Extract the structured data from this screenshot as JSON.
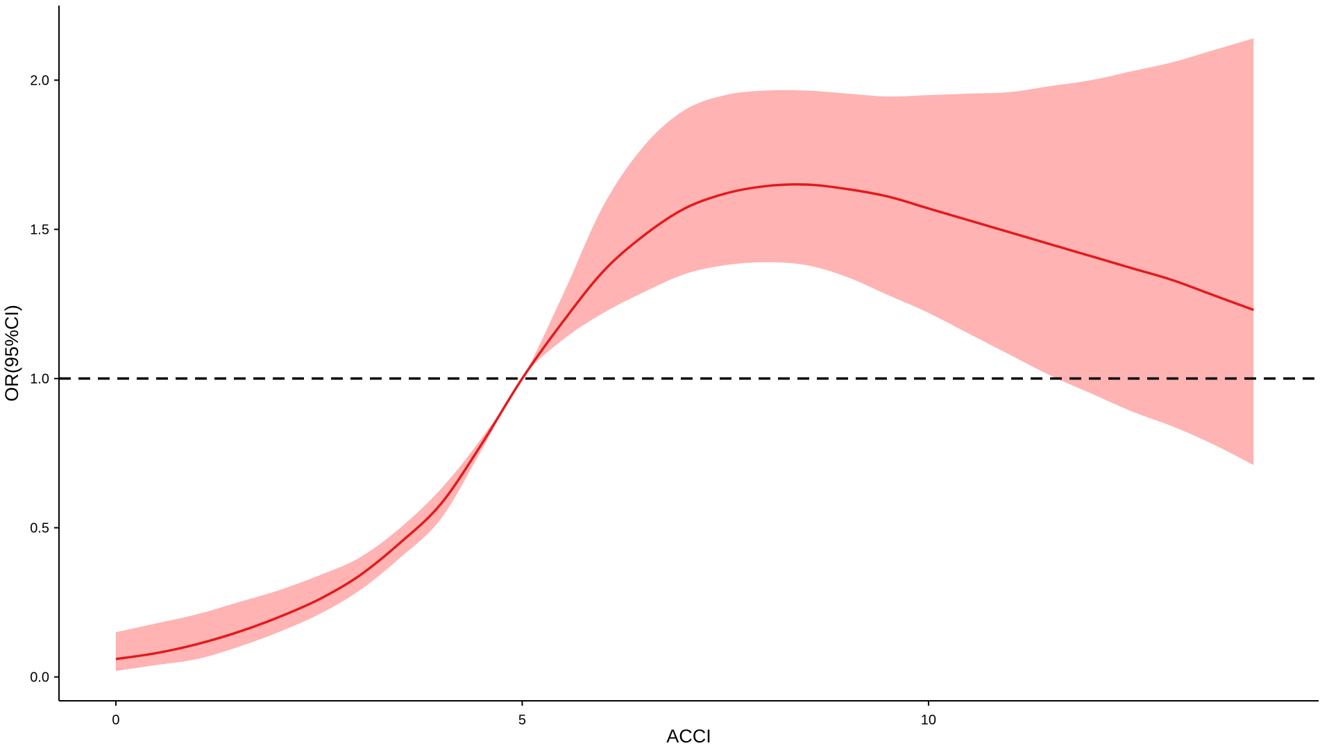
{
  "chart_data": {
    "type": "line",
    "title": "",
    "xlabel": "ACCI",
    "ylabel": "OR(95%CI)",
    "xlim": [
      -0.7,
      14.8
    ],
    "ylim": [
      -0.08,
      2.25
    ],
    "x_ticks": [
      0,
      5,
      10
    ],
    "x_tick_labels": [
      "0",
      "5",
      "10"
    ],
    "y_ticks": [
      0.0,
      0.5,
      1.0,
      1.5,
      2.0
    ],
    "y_tick_labels": [
      "0.0",
      "0.5",
      "1.0",
      "1.5",
      "2.0"
    ],
    "grid": false,
    "legend": "none",
    "reference_line": {
      "y": 1.0,
      "style": "dashed",
      "color": "#000000"
    },
    "line_color": "#e31a1c",
    "band_color": "#ffb3b3",
    "series": [
      {
        "x": [
          0,
          0.5,
          1,
          1.5,
          2,
          2.5,
          3,
          3.5,
          4,
          4.5,
          5,
          5.5,
          6,
          6.5,
          7,
          7.5,
          8,
          8.5,
          9,
          9.5,
          10,
          10.5,
          11,
          11.5,
          12,
          12.5,
          13,
          13.5,
          14
        ],
        "y": [
          0.06,
          0.08,
          0.11,
          0.15,
          0.2,
          0.26,
          0.34,
          0.45,
          0.58,
          0.78,
          1.0,
          1.19,
          1.36,
          1.48,
          1.57,
          1.62,
          1.645,
          1.65,
          1.635,
          1.61,
          1.57,
          1.53,
          1.49,
          1.45,
          1.41,
          1.37,
          1.33,
          1.28,
          1.23
        ],
        "lower": [
          0.02,
          0.04,
          0.06,
          0.1,
          0.15,
          0.21,
          0.29,
          0.4,
          0.53,
          0.76,
          1.0,
          1.13,
          1.22,
          1.29,
          1.35,
          1.38,
          1.39,
          1.38,
          1.34,
          1.28,
          1.22,
          1.15,
          1.08,
          1.01,
          0.95,
          0.89,
          0.84,
          0.78,
          0.71
        ],
        "upper": [
          0.15,
          0.18,
          0.21,
          0.25,
          0.29,
          0.34,
          0.4,
          0.5,
          0.63,
          0.8,
          1.0,
          1.28,
          1.58,
          1.78,
          1.9,
          1.95,
          1.965,
          1.965,
          1.955,
          1.945,
          1.95,
          1.955,
          1.96,
          1.98,
          2.0,
          2.03,
          2.06,
          2.1,
          2.14
        ]
      }
    ]
  }
}
